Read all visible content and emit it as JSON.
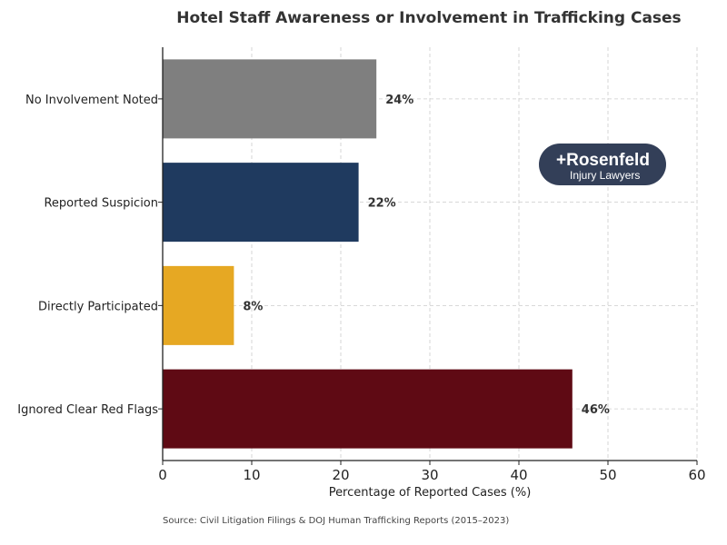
{
  "chart_data": {
    "type": "bar",
    "orientation": "horizontal",
    "title": "Hotel Staff Awareness or Involvement in Trafficking Cases",
    "categories": [
      "No Involvement Noted",
      "Reported Suspicion",
      "Directly Participated",
      "Ignored Clear Red Flags"
    ],
    "values": [
      24,
      22,
      8,
      46
    ],
    "data_labels": [
      "24%",
      "22%",
      "8%",
      "46%"
    ],
    "colors": [
      "#7f7f7f",
      "#1f3a5f",
      "#e6a823",
      "#5f0a14"
    ],
    "xlabel": "Percentage of Reported Cases (%)",
    "ylabel": "",
    "xlim": [
      0,
      60
    ],
    "xticks": [
      0,
      10,
      20,
      30,
      40,
      50,
      60
    ],
    "grid": true
  },
  "source": "Source: Civil Litigation Filings & DOJ Human Trafficking Reports (2015–2023)",
  "logo": {
    "line1": "Rosenfeld",
    "line2": "Injury Lawyers",
    "color": "#333f58"
  }
}
